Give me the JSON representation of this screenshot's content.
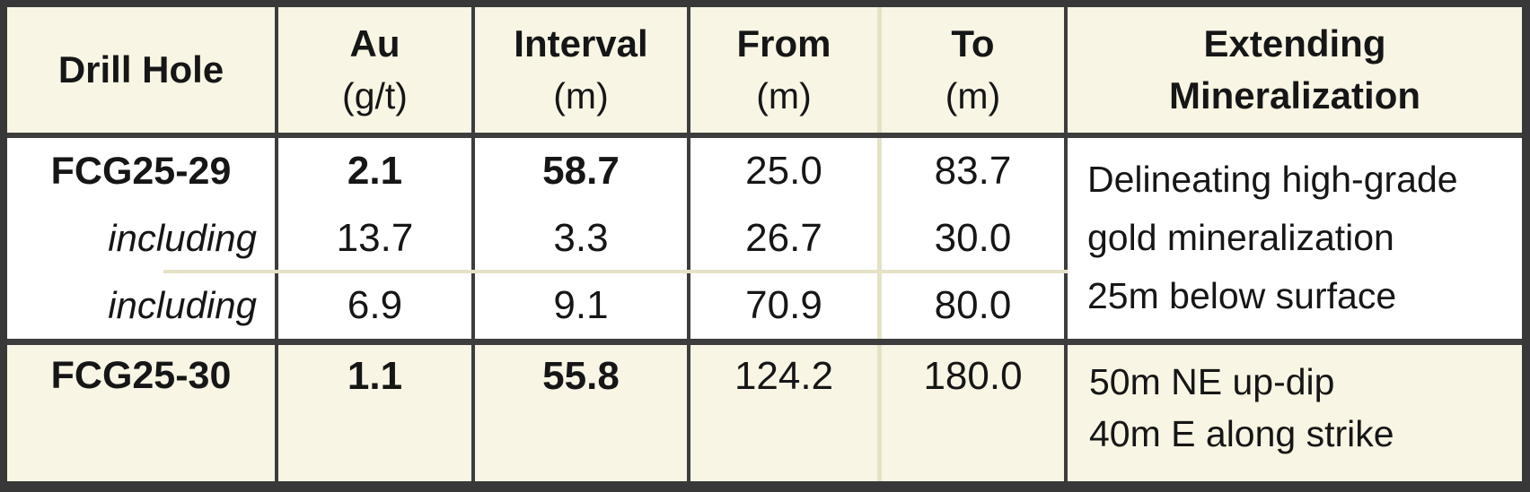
{
  "colors": {
    "header_background": "#f8f5e4",
    "footer_background": "#f8f5e4",
    "body_background": "#ffffff",
    "dark_border": "#3d3d3d",
    "light_border": "#e6e2c8",
    "text": "#161616"
  },
  "header": {
    "col1": {
      "line1": "Drill Hole"
    },
    "col2": {
      "line1": "Au",
      "line2": "(g/t)"
    },
    "col3": {
      "line1": "Interval",
      "line2": "(m)"
    },
    "col4": {
      "line1": "From",
      "line2": "(m)"
    },
    "col5": {
      "line1": "To",
      "line2": "(m)"
    },
    "col6": {
      "line1": "Extending",
      "line2": "Mineralization"
    }
  },
  "hole_29": {
    "rows": [
      {
        "hole": "FCG25-29",
        "au": "2.1",
        "interval": "58.7",
        "from": "25.0",
        "to": "83.7"
      },
      {
        "hole": "including",
        "au": "13.7",
        "interval": "3.3",
        "from": "26.7",
        "to": "30.0"
      },
      {
        "hole": "including",
        "au": "6.9",
        "interval": "9.1",
        "from": "70.9",
        "to": "80.0"
      }
    ],
    "note": {
      "line1": "Delineating high-grade",
      "line2": "gold mineralization",
      "line3": "25m below surface"
    }
  },
  "hole_30": {
    "row": {
      "hole": "FCG25-30",
      "au": "1.1",
      "interval": "55.8",
      "from": "124.2",
      "to": "180.0"
    },
    "note": {
      "line1": "50m NE up-dip",
      "line2": "40m E along strike"
    }
  },
  "chart_data": {
    "type": "table",
    "title": "Drill hole assay results",
    "columns": [
      "Drill Hole",
      "Au (g/t)",
      "Interval (m)",
      "From (m)",
      "To (m)",
      "Extending Mineralization"
    ],
    "rows": [
      [
        "FCG25-29",
        2.1,
        58.7,
        25.0,
        83.7,
        "Delineating high-grade gold mineralization 25m below surface"
      ],
      [
        "including",
        13.7,
        3.3,
        26.7,
        30.0,
        ""
      ],
      [
        "including",
        6.9,
        9.1,
        70.9,
        80.0,
        ""
      ],
      [
        "FCG25-30",
        1.1,
        55.8,
        124.2,
        180.0,
        "50m NE up-dip 40m E along strike"
      ]
    ],
    "layout_hints": {
      "bold_rows": [
        "FCG25-29 summary values (Au, Interval)",
        "FCG25-30 summary values (Au, Interval)"
      ],
      "italic_cells": [
        "including"
      ],
      "shaded_rows": [
        "header",
        "FCG25-30"
      ]
    }
  }
}
